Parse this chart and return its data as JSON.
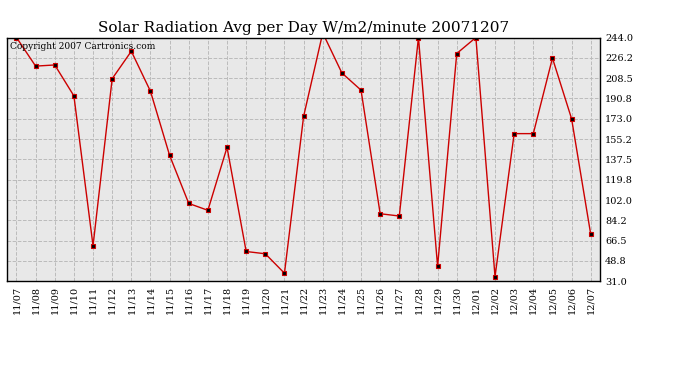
{
  "title": "Solar Radiation Avg per Day W/m2/minute 20071207",
  "copyright": "Copyright 2007 Cartronics.com",
  "labels": [
    "11/07",
    "11/08",
    "11/09",
    "11/10",
    "11/11",
    "11/12",
    "11/13",
    "11/14",
    "11/15",
    "11/16",
    "11/17",
    "11/18",
    "11/19",
    "11/20",
    "11/21",
    "11/22",
    "11/23",
    "11/24",
    "11/25",
    "11/26",
    "11/27",
    "11/28",
    "11/29",
    "11/30",
    "12/01",
    "12/02",
    "12/03",
    "12/04",
    "12/05",
    "12/06",
    "12/07"
  ],
  "values": [
    244.0,
    219.0,
    220.0,
    193.0,
    62.0,
    208.0,
    232.0,
    197.0,
    141.0,
    99.0,
    93.0,
    148.0,
    57.0,
    55.0,
    38.0,
    175.0,
    248.0,
    213.0,
    198.0,
    90.0,
    88.0,
    244.0,
    44.0,
    230.0,
    244.0,
    35.0,
    160.0,
    160.0,
    226.0,
    173.0,
    72.0
  ],
  "line_color": "#cc0000",
  "marker": "s",
  "marker_size": 2.5,
  "marker_facecolor": "#000000",
  "marker_edgecolor": "#cc0000",
  "bg_color": "#ffffff",
  "plot_bg_color": "#e8e8e8",
  "grid_color": "#bbbbbb",
  "grid_style": "--",
  "ylim": [
    31.0,
    244.0
  ],
  "yticks": [
    31.0,
    48.8,
    66.5,
    84.2,
    102.0,
    119.8,
    137.5,
    155.2,
    173.0,
    190.8,
    208.5,
    226.2,
    244.0
  ],
  "title_fontsize": 11,
  "tick_fontsize": 7,
  "copyright_fontsize": 6.5,
  "fig_width": 6.9,
  "fig_height": 3.75,
  "dpi": 100
}
